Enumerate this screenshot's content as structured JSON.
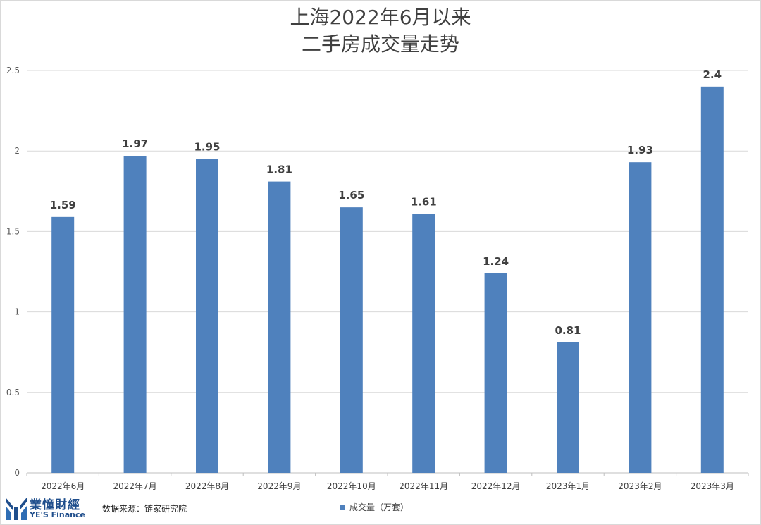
{
  "chart_data": {
    "type": "bar",
    "title": [
      "上海2022年6月以来",
      "二手房成交量走势"
    ],
    "categories": [
      "2022年6月",
      "2022年7月",
      "2022年8月",
      "2022年9月",
      "2022年10月",
      "2022年11月",
      "2022年12月",
      "2023年1月",
      "2023年2月",
      "2023年3月"
    ],
    "series": [
      {
        "name": "成交量（万套）",
        "values": [
          1.59,
          1.97,
          1.95,
          1.81,
          1.65,
          1.61,
          1.24,
          0.81,
          1.93,
          2.4
        ],
        "color": "#4f81bd"
      }
    ],
    "data_labels": [
      "1.59",
      "1.97",
      "1.95",
      "1.81",
      "1.65",
      "1.61",
      "1.24",
      "0.81",
      "1.93",
      "2.4"
    ],
    "yticks": [
      "0",
      "0.5",
      "1",
      "1.5",
      "2",
      "2.5"
    ],
    "ylim": [
      0,
      2.5
    ],
    "grid": true,
    "legend_position": "bottom"
  },
  "footer": {
    "source": "数据来源：链家研究院",
    "logo_cn": "業憧財經",
    "logo_en": "YE'S Finance"
  },
  "colors": {
    "bar": "#4f81bd",
    "grid": "#d9d9d9",
    "text": "#404040"
  },
  "icons": {
    "logo": "yes-finance-logo-icon"
  }
}
